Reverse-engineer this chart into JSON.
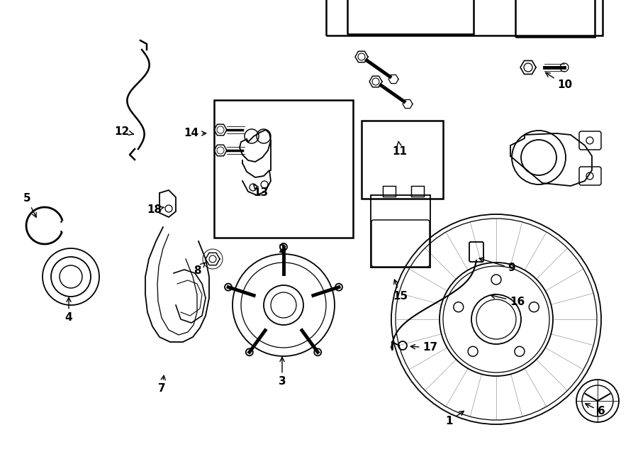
{
  "background_color": "#ffffff",
  "line_color": "#000000",
  "figure_width": 9.0,
  "figure_height": 6.61,
  "dpi": 100
}
